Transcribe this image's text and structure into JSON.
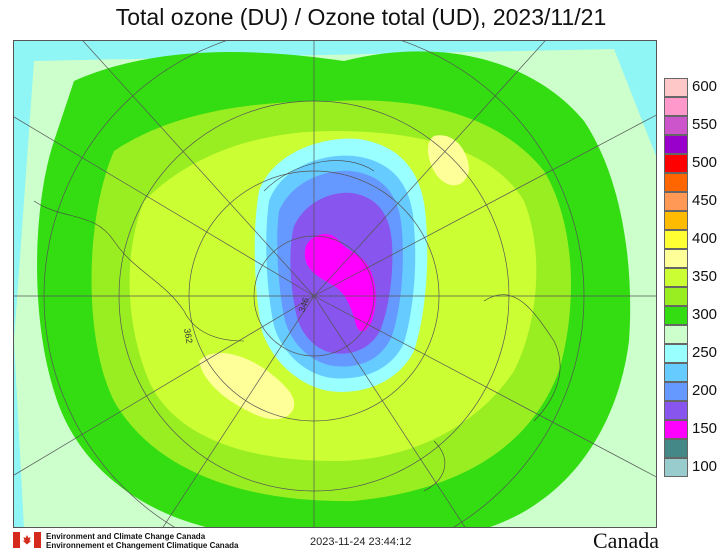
{
  "title": "Total ozone (DU) / Ozone total (UD), 2023/11/21",
  "legend": {
    "values": [
      "600",
      "550",
      "500",
      "450",
      "400",
      "350",
      "300",
      "250",
      "200",
      "150",
      "100"
    ],
    "colors": [
      "#ffc8c8",
      "#ff99cc",
      "#cc55cc",
      "#9900cc",
      "#ff0000",
      "#ff6600",
      "#ff9955",
      "#ffbb00",
      "#ffff33",
      "#ffff99",
      "#ccff33",
      "#99ee22",
      "#33dd11",
      "#ccffcc",
      "#99ffff",
      "#66ccff",
      "#6699ff",
      "#8855ee",
      "#ff00ff",
      "#448888",
      "#99cccc"
    ]
  },
  "map": {
    "contour_colors": {
      "background": "#8ff5f5",
      "pale": "#ccffcc",
      "green": "#33dd11",
      "light_green": "#99ee22",
      "yellow_green": "#ccff33",
      "pale_yellow": "#ffff99",
      "cyan": "#99ffff",
      "light_blue": "#66ccff",
      "blue": "#6699ff",
      "violet": "#8855ee",
      "magenta": "#ff00ff"
    },
    "annotations": [
      "346",
      "362"
    ]
  },
  "footer": {
    "agency_en": "Environment and Climate Change Canada",
    "agency_fr": "Environnement et Changement Climatique Canada",
    "timestamp": "2023-11-24 23:44:12",
    "wordmark": "Canada"
  }
}
